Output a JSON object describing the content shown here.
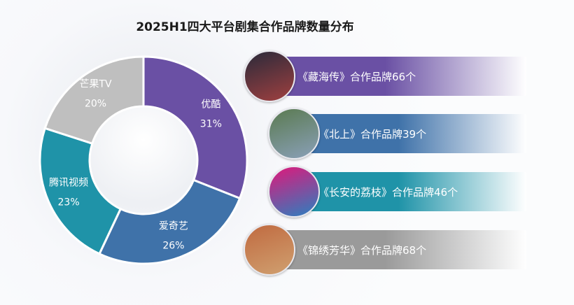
{
  "chart_data": {
    "type": "pie",
    "title": "2025H1四大平台剧集合作品牌数量分布",
    "categories": [
      "优酷",
      "爱奇艺",
      "腾讯视频",
      "芒果TV"
    ],
    "values": [
      31,
      26,
      23,
      20
    ],
    "labels": [
      "31%",
      "26%",
      "23%",
      "20%"
    ],
    "colors": [
      "#6a50a4",
      "#3f72a9",
      "#1f93a8",
      "#bfbfbf"
    ],
    "donut": true
  },
  "dramas": [
    {
      "label": "《藏海传》合作品牌66个",
      "color": "#6a50a4",
      "thumb_colors": [
        "#2a2a3a",
        "#a04040"
      ]
    },
    {
      "label": "《北上》合作品牌39个",
      "color": "#3f72a9",
      "thumb_colors": [
        "#5a7a50",
        "#8aa0b8"
      ]
    },
    {
      "label": "《长安的荔枝》合作品牌46个",
      "color": "#1f93a8",
      "thumb_colors": [
        "#e0187a",
        "#2a80c0"
      ]
    },
    {
      "label": "《锦绣芳华》合作品牌68个",
      "color": "#9a9a9a",
      "thumb_colors": [
        "#c06a40",
        "#d0a070"
      ]
    }
  ]
}
